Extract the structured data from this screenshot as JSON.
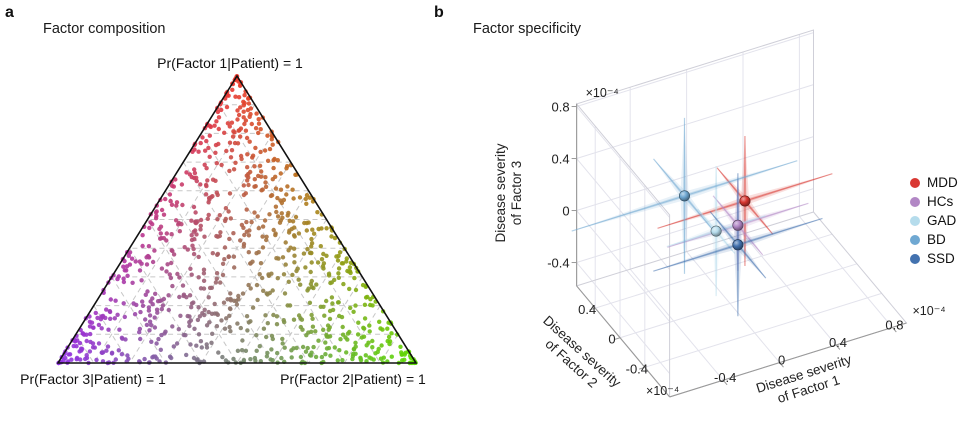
{
  "panel_a": {
    "label": "a",
    "title": "Factor composition",
    "corner_labels": {
      "top": "Pr(Factor 1|Patient) = 1",
      "bottom_left": "Pr(Factor 3|Patient) = 1",
      "bottom_right": "Pr(Factor 2|Patient) = 1"
    }
  },
  "panel_b": {
    "label": "b",
    "title": "Factor specificity",
    "legend": [
      {
        "label": "MDD",
        "color": "#d93832"
      },
      {
        "label": "HCs",
        "color": "#b287c5"
      },
      {
        "label": "GAD",
        "color": "#b5dcec"
      },
      {
        "label": "BD",
        "color": "#6fa8d2"
      },
      {
        "label": "SSD",
        "color": "#4372af"
      }
    ]
  },
  "chart_data": [
    {
      "type": "scatter",
      "variant": "ternary",
      "title": "Factor composition",
      "vertices": [
        {
          "label": "Pr(Factor 1|Patient) = 1",
          "position": "top",
          "color": "#ee3a2c"
        },
        {
          "label": "Pr(Factor 2|Patient) = 1",
          "position": "bottom-right",
          "color": "#5bdc00"
        },
        {
          "label": "Pr(Factor 3|Patient) = 1",
          "position": "bottom-left",
          "color": "#9231e6"
        }
      ],
      "grid_interval": 0.1,
      "grid_style": "dashed",
      "n_points": 950,
      "point_radius": 2.2,
      "distribution": {
        "mixture_uniform": 0.58,
        "mixture_dirichlet_alpha": 0.5,
        "seed": 1337
      },
      "color_rule": "barycentric RGB blend of the three vertex colors"
    },
    {
      "type": "scatter",
      "variant": "3d-scatter-with-error-bars",
      "title": "Factor specificity",
      "unit_multiplier": "×10⁻⁴",
      "axes": {
        "x": {
          "label": "Disease severity of Factor 1",
          "ticks": [
            -0.4,
            0,
            0.4,
            0.8
          ],
          "range": [
            -0.78,
            0.9
          ]
        },
        "y": {
          "label": "Disease severity of Factor 2",
          "ticks": [
            0.4,
            0,
            -0.4
          ],
          "range": [
            -0.8,
            0.7
          ]
        },
        "z": {
          "label": "Disease severity of Factor 3",
          "ticks": [
            0.8,
            0.4,
            0,
            -0.4
          ],
          "range": [
            -0.58,
            0.82
          ]
        }
      },
      "groups": [
        {
          "name": "MDD",
          "color": "#d93832",
          "position": [
            0.15,
            0.1,
            0.1
          ],
          "error": [
            0.62,
            0.45,
            0.5
          ]
        },
        {
          "name": "HCs",
          "color": "#b287c5",
          "position": [
            0.1,
            0.1,
            -0.07
          ],
          "error": [
            0.5,
            0.4,
            0.35
          ]
        },
        {
          "name": "GAD",
          "color": "#b5dcec",
          "position": [
            -0.05,
            0.11,
            -0.07
          ],
          "error": [
            0.35,
            0.3,
            0.5
          ]
        },
        {
          "name": "BD",
          "color": "#6fa8d2",
          "position": [
            -0.27,
            0.12,
            0.27
          ],
          "error": [
            0.8,
            0.5,
            0.6
          ]
        },
        {
          "name": "SSD",
          "color": "#4372af",
          "position": [
            0.1,
            0.1,
            -0.22
          ],
          "error": [
            0.6,
            0.45,
            0.55
          ]
        }
      ]
    }
  ]
}
